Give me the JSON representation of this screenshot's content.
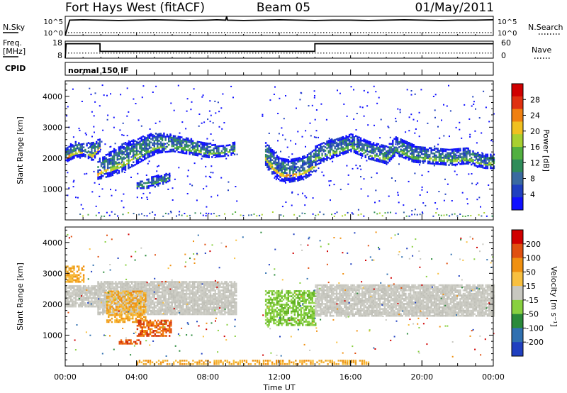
{
  "header": {
    "title": "Fort Hays West (fitACF)",
    "beam": "Beam 05",
    "date": "01/May/2011"
  },
  "chart_data": [
    {
      "type": "line",
      "panel": "noise",
      "left_label": "N.Sky",
      "right_label": "N.Search",
      "left_ticks": [
        "10^5",
        "10^0"
      ],
      "right_ticks": [
        "10^5",
        "10^0"
      ],
      "x_range_hours": [
        0,
        24
      ],
      "series": [
        {
          "name": "N.Sky",
          "style": "solid",
          "x": [
            0.0,
            0.25,
            1.0,
            2.0,
            3.0,
            4.0,
            5.0,
            6.0,
            7.0,
            8.0,
            8.5,
            9.0,
            9.05,
            9.1,
            10.0,
            11.0,
            12.0,
            13.0,
            14.0,
            15.0,
            16.0,
            17.0,
            18.0,
            19.0,
            20.0,
            21.0,
            22.0,
            23.0,
            24.0
          ],
          "y_frac": [
            0.0,
            0.8,
            0.82,
            0.8,
            0.78,
            0.8,
            0.82,
            0.8,
            0.78,
            0.8,
            0.82,
            0.8,
            1.0,
            0.8,
            0.78,
            0.8,
            0.82,
            0.8,
            0.78,
            0.8,
            0.8,
            0.78,
            0.8,
            0.82,
            0.8,
            0.78,
            0.8,
            0.8,
            0.82
          ]
        },
        {
          "name": "N.Search",
          "style": "dotted",
          "x": [
            0.0,
            24.0
          ],
          "y_frac": [
            0.15,
            0.15
          ]
        }
      ]
    },
    {
      "type": "line",
      "panel": "frequency",
      "left_label": "Freq.",
      "left_unit": "[MHz]",
      "right_label": "Nave",
      "left_ticks": [
        "18",
        "8"
      ],
      "right_ticks": [
        "60",
        "0"
      ],
      "x_range_hours": [
        0,
        24
      ],
      "series": [
        {
          "name": "Freq.",
          "style": "solid",
          "x": [
            0.0,
            0.05,
            1.95,
            1.95,
            14.0,
            14.0,
            24.0
          ],
          "y": [
            8,
            16.5,
            16.5,
            12,
            12,
            16.5,
            16.5
          ]
        },
        {
          "name": "Nave",
          "style": "dotted",
          "x": [
            0.0,
            24.0
          ],
          "y": [
            18,
            18
          ]
        }
      ]
    },
    {
      "type": "table",
      "panel": "cpid",
      "label": "CPID",
      "segments": [
        {
          "start_hour": 0,
          "text": "normal 150 IF"
        }
      ]
    },
    {
      "type": "heatmap",
      "panel": "power",
      "ylabel": "Slant Range [km]",
      "y_ticks": [
        1000,
        2000,
        3000,
        4000
      ],
      "ylim": [
        0,
        4500
      ],
      "x_range_hours": [
        0,
        24
      ],
      "colorbar": {
        "label": "Power [dB]",
        "ticks": [
          4,
          8,
          12,
          16,
          20,
          24,
          28
        ],
        "colors": [
          "#1010ff",
          "#2040c0",
          "#3a6aa0",
          "#2f8c5a",
          "#52b040",
          "#a8d030",
          "#f0c020",
          "#f08010",
          "#e03010",
          "#d00000"
        ]
      },
      "bands": [
        {
          "x": [
            0.0,
            0.5,
            1.0,
            1.5,
            1.9
          ],
          "lo": [
            1850,
            2000,
            2050,
            1900,
            2200
          ],
          "hi": [
            2300,
            2550,
            2450,
            2500,
            2600
          ],
          "core": [
            0.8,
            0.6,
            0.55,
            0.6,
            0.6
          ]
        },
        {
          "x": [
            1.8,
            2.5,
            3.2,
            4.0,
            4.6,
            5.2,
            6.0,
            7.0,
            8.0,
            9.0,
            9.5
          ],
          "lo": [
            1300,
            1400,
            1550,
            1800,
            2000,
            2150,
            2200,
            2100,
            2000,
            2050,
            2100
          ],
          "hi": [
            1900,
            2200,
            2450,
            2600,
            2750,
            2800,
            2750,
            2600,
            2450,
            2400,
            2500
          ],
          "core": [
            0.65,
            0.5,
            0.45,
            0.4,
            0.35,
            0.3,
            0.3,
            0.3,
            0.3,
            0.3,
            0.3
          ]
        },
        {
          "x": [
            4.0,
            4.5,
            5.0,
            5.5,
            5.8
          ],
          "lo": [
            1000,
            1000,
            1050,
            1150,
            1250
          ],
          "hi": [
            1200,
            1300,
            1400,
            1450,
            1500
          ],
          "core": [
            0.2,
            0.2,
            0.2,
            0.2,
            0.2
          ]
        },
        {
          "x": [
            11.2,
            11.5,
            12.0,
            12.5,
            13.0,
            13.5,
            14.0
          ],
          "lo": [
            1750,
            1500,
            1250,
            1200,
            1250,
            1350,
            1550
          ],
          "hi": [
            2500,
            2300,
            2000,
            1950,
            2000,
            2100,
            2300
          ],
          "core": [
            0.55,
            0.55,
            0.7,
            0.8,
            0.75,
            0.6,
            0.55
          ]
        },
        {
          "x": [
            14.0,
            15.0,
            16.0,
            17.0,
            18.0,
            18.5,
            19.5,
            20.5,
            21.5,
            22.5,
            23.5,
            24.0
          ],
          "lo": [
            1750,
            2000,
            2200,
            1950,
            1800,
            2100,
            1850,
            1800,
            1750,
            1800,
            1650,
            1650
          ],
          "hi": [
            2400,
            2600,
            2800,
            2550,
            2400,
            2700,
            2400,
            2300,
            2250,
            2300,
            2100,
            2150
          ],
          "core": [
            0.4,
            0.35,
            0.35,
            0.35,
            0.35,
            0.35,
            0.35,
            0.35,
            0.35,
            0.35,
            0.35,
            0.35
          ]
        }
      ]
    },
    {
      "type": "heatmap",
      "panel": "velocity",
      "ylabel": "Slant Range [km]",
      "y_ticks": [
        1000,
        2000,
        3000,
        4000
      ],
      "ylim": [
        0,
        4500
      ],
      "x_range_hours": [
        0,
        24
      ],
      "xlabel": "Time UT",
      "x_ticks": [
        "00:00",
        "04:00",
        "08:00",
        "12:00",
        "16:00",
        "20:00",
        "00:00"
      ],
      "colorbar": {
        "label": "Velocity [m s⁻¹]",
        "ticks": [
          "200",
          "100",
          "50",
          "15",
          "-15",
          "-50",
          "-100",
          "-200"
        ],
        "colors": [
          "#2040c0",
          "#3070b0",
          "#2a8a3a",
          "#88d040",
          "#c8c8c0",
          "#f8c040",
          "#f09010",
          "#e05010",
          "#d00000"
        ]
      },
      "regions": [
        {
          "x0": 0.0,
          "x1": 1.9,
          "lo": 1900,
          "hi": 2600,
          "class": "gray"
        },
        {
          "x0": 0.0,
          "x1": 1.0,
          "lo": 2700,
          "hi": 3200,
          "class": "orange"
        },
        {
          "x0": 1.8,
          "x1": 9.6,
          "lo": 1650,
          "hi": 2700,
          "class": "gray"
        },
        {
          "x0": 2.3,
          "x1": 4.5,
          "lo": 1400,
          "hi": 2400,
          "class": "orange"
        },
        {
          "x0": 4.0,
          "x1": 5.9,
          "lo": 950,
          "hi": 1450,
          "class": "red"
        },
        {
          "x0": 3.0,
          "x1": 4.2,
          "lo": 700,
          "hi": 850,
          "class": "red"
        },
        {
          "x0": 11.2,
          "x1": 14.0,
          "lo": 1300,
          "hi": 2400,
          "class": "green"
        },
        {
          "x0": 14.0,
          "x1": 24.0,
          "lo": 1600,
          "hi": 2600,
          "class": "gray"
        },
        {
          "x0": 4.0,
          "x1": 17.0,
          "lo": 40,
          "hi": 180,
          "class": "orange"
        }
      ]
    }
  ],
  "colors": {
    "axis": "#000000",
    "gray_velocity": "#c8c8c0"
  }
}
